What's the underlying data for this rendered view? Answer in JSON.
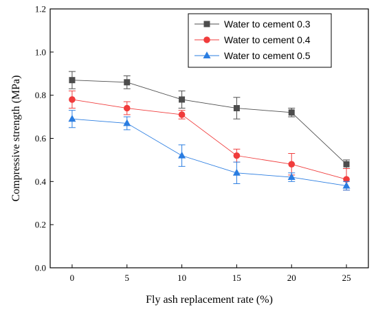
{
  "chart_data": {
    "type": "line",
    "title": "",
    "xlabel": "Fly ash replacement rate (%)",
    "ylabel": "Compressive strength (MPa)",
    "x": [
      0,
      5,
      10,
      15,
      20,
      25
    ],
    "xlim": [
      -2,
      27
    ],
    "ylim": [
      0,
      1.2
    ],
    "xticks": [
      0,
      5,
      10,
      15,
      20,
      25
    ],
    "yticks": [
      0.0,
      0.2,
      0.4,
      0.6,
      0.8,
      1.0,
      1.2
    ],
    "ytick_labels": [
      "0.0",
      "0.2",
      "0.4",
      "0.6",
      "0.8",
      "1.0",
      "1.2"
    ],
    "grid": false,
    "legend_position": "top-right",
    "series": [
      {
        "name": "Water to cement 0.3",
        "color": "#4d4d4d",
        "marker": "square",
        "values": [
          0.87,
          0.86,
          0.78,
          0.74,
          0.72,
          0.48
        ],
        "errors": [
          0.04,
          0.03,
          0.04,
          0.05,
          0.02,
          0.02
        ]
      },
      {
        "name": "Water to cement 0.4",
        "color": "#f03c3c",
        "marker": "circle",
        "values": [
          0.78,
          0.74,
          0.71,
          0.52,
          0.48,
          0.41
        ],
        "errors": [
          0.04,
          0.03,
          0.02,
          0.03,
          0.05,
          0.05
        ]
      },
      {
        "name": "Water to cement 0.5",
        "color": "#2a7de1",
        "marker": "triangle",
        "values": [
          0.69,
          0.67,
          0.52,
          0.44,
          0.42,
          0.38
        ],
        "errors": [
          0.04,
          0.03,
          0.05,
          0.05,
          0.02,
          0.02
        ]
      }
    ]
  }
}
